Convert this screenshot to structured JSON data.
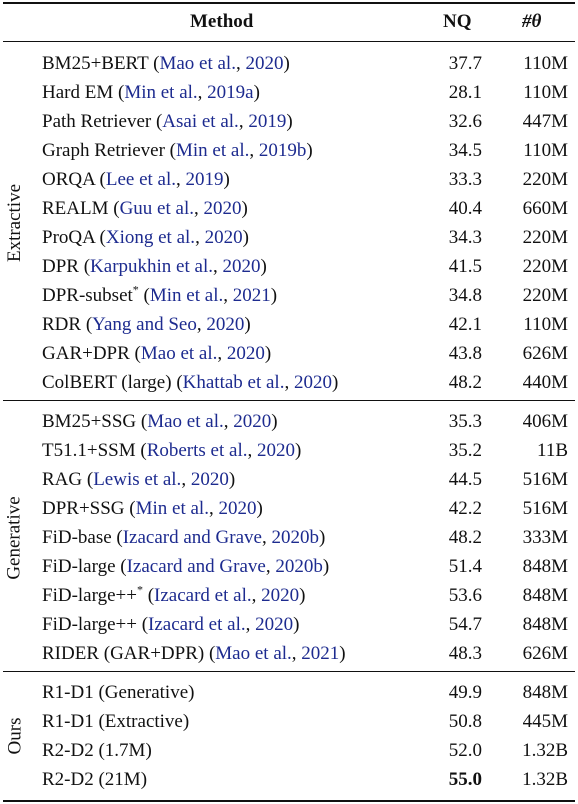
{
  "header": {
    "method": "Method",
    "nq": "NQ",
    "params": "#θ"
  },
  "groups": [
    {
      "label": "Extractive",
      "rows": [
        {
          "name": "BM25+BERT",
          "cite": "Mao et al., 2020",
          "nq": "37.7",
          "params": "110M"
        },
        {
          "name": "Hard EM",
          "cite": "Min et al., 2019a",
          "nq": "28.1",
          "params": "110M"
        },
        {
          "name": "Path Retriever",
          "cite": "Asai et al., 2019",
          "nq": "32.6",
          "params": "447M"
        },
        {
          "name": "Graph Retriever",
          "cite": "Min et al., 2019b",
          "nq": "34.5",
          "params": "110M"
        },
        {
          "name": "ORQA",
          "cite": "Lee et al., 2019",
          "nq": "33.3",
          "params": "220M"
        },
        {
          "name": "REALM",
          "cite": "Guu et al., 2020",
          "nq": "40.4",
          "params": "660M"
        },
        {
          "name": "ProQA",
          "cite": "Xiong et al., 2020",
          "nq": "34.3",
          "params": "220M"
        },
        {
          "name": "DPR",
          "cite": "Karpukhin et al., 2020",
          "nq": "41.5",
          "params": "220M"
        },
        {
          "name": "DPR-subset*",
          "cite": "Min et al., 2021",
          "nq": "34.8",
          "params": "220M"
        },
        {
          "name": "RDR",
          "cite": "Yang and Seo, 2020",
          "nq": "42.1",
          "params": "110M"
        },
        {
          "name": "GAR+DPR",
          "cite": "Mao et al., 2020",
          "nq": "43.8",
          "params": "626M"
        },
        {
          "name": "ColBERT (large)",
          "cite": "Khattab et al., 2020",
          "nq": "48.2",
          "params": "440M"
        }
      ]
    },
    {
      "label": "Generative",
      "rows": [
        {
          "name": "BM25+SSG",
          "cite": "Mao et al., 2020",
          "nq": "35.3",
          "params": "406M"
        },
        {
          "name": "T51.1+SSM",
          "cite": "Roberts et al., 2020",
          "nq": "35.2",
          "params": "11B"
        },
        {
          "name": "RAG",
          "cite": "Lewis et al., 2020",
          "nq": "44.5",
          "params": "516M"
        },
        {
          "name": "DPR+SSG",
          "cite": "Min et al., 2020",
          "nq": "42.2",
          "params": "516M"
        },
        {
          "name": "FiD-base",
          "cite": "Izacard and Grave, 2020b",
          "nq": "48.2",
          "params": "333M"
        },
        {
          "name": "FiD-large",
          "cite": "Izacard and Grave, 2020b",
          "nq": "51.4",
          "params": "848M"
        },
        {
          "name": "FiD-large++*",
          "cite": "Izacard et al., 2020",
          "nq": "53.6",
          "params": "848M"
        },
        {
          "name": "FiD-large++",
          "cite": "Izacard et al., 2020",
          "nq": "54.7",
          "params": "848M"
        },
        {
          "name": "RIDER (GAR+DPR)",
          "cite": "Mao et al., 2021",
          "nq": "48.3",
          "params": "626M"
        }
      ]
    },
    {
      "label": "Ours",
      "rows": [
        {
          "name": "R1-D1 (Generative)",
          "cite": "",
          "nq": "49.9",
          "params": "848M"
        },
        {
          "name": "R1-D1 (Extractive)",
          "cite": "",
          "nq": "50.8",
          "params": "445M"
        },
        {
          "name": "R2-D2 (1.7M)",
          "cite": "",
          "nq": "52.0",
          "params": "1.32B"
        },
        {
          "name": "R2-D2 (21M)",
          "cite": "",
          "nq": "55.0",
          "params": "1.32B",
          "bold_nq": true
        }
      ]
    }
  ]
}
